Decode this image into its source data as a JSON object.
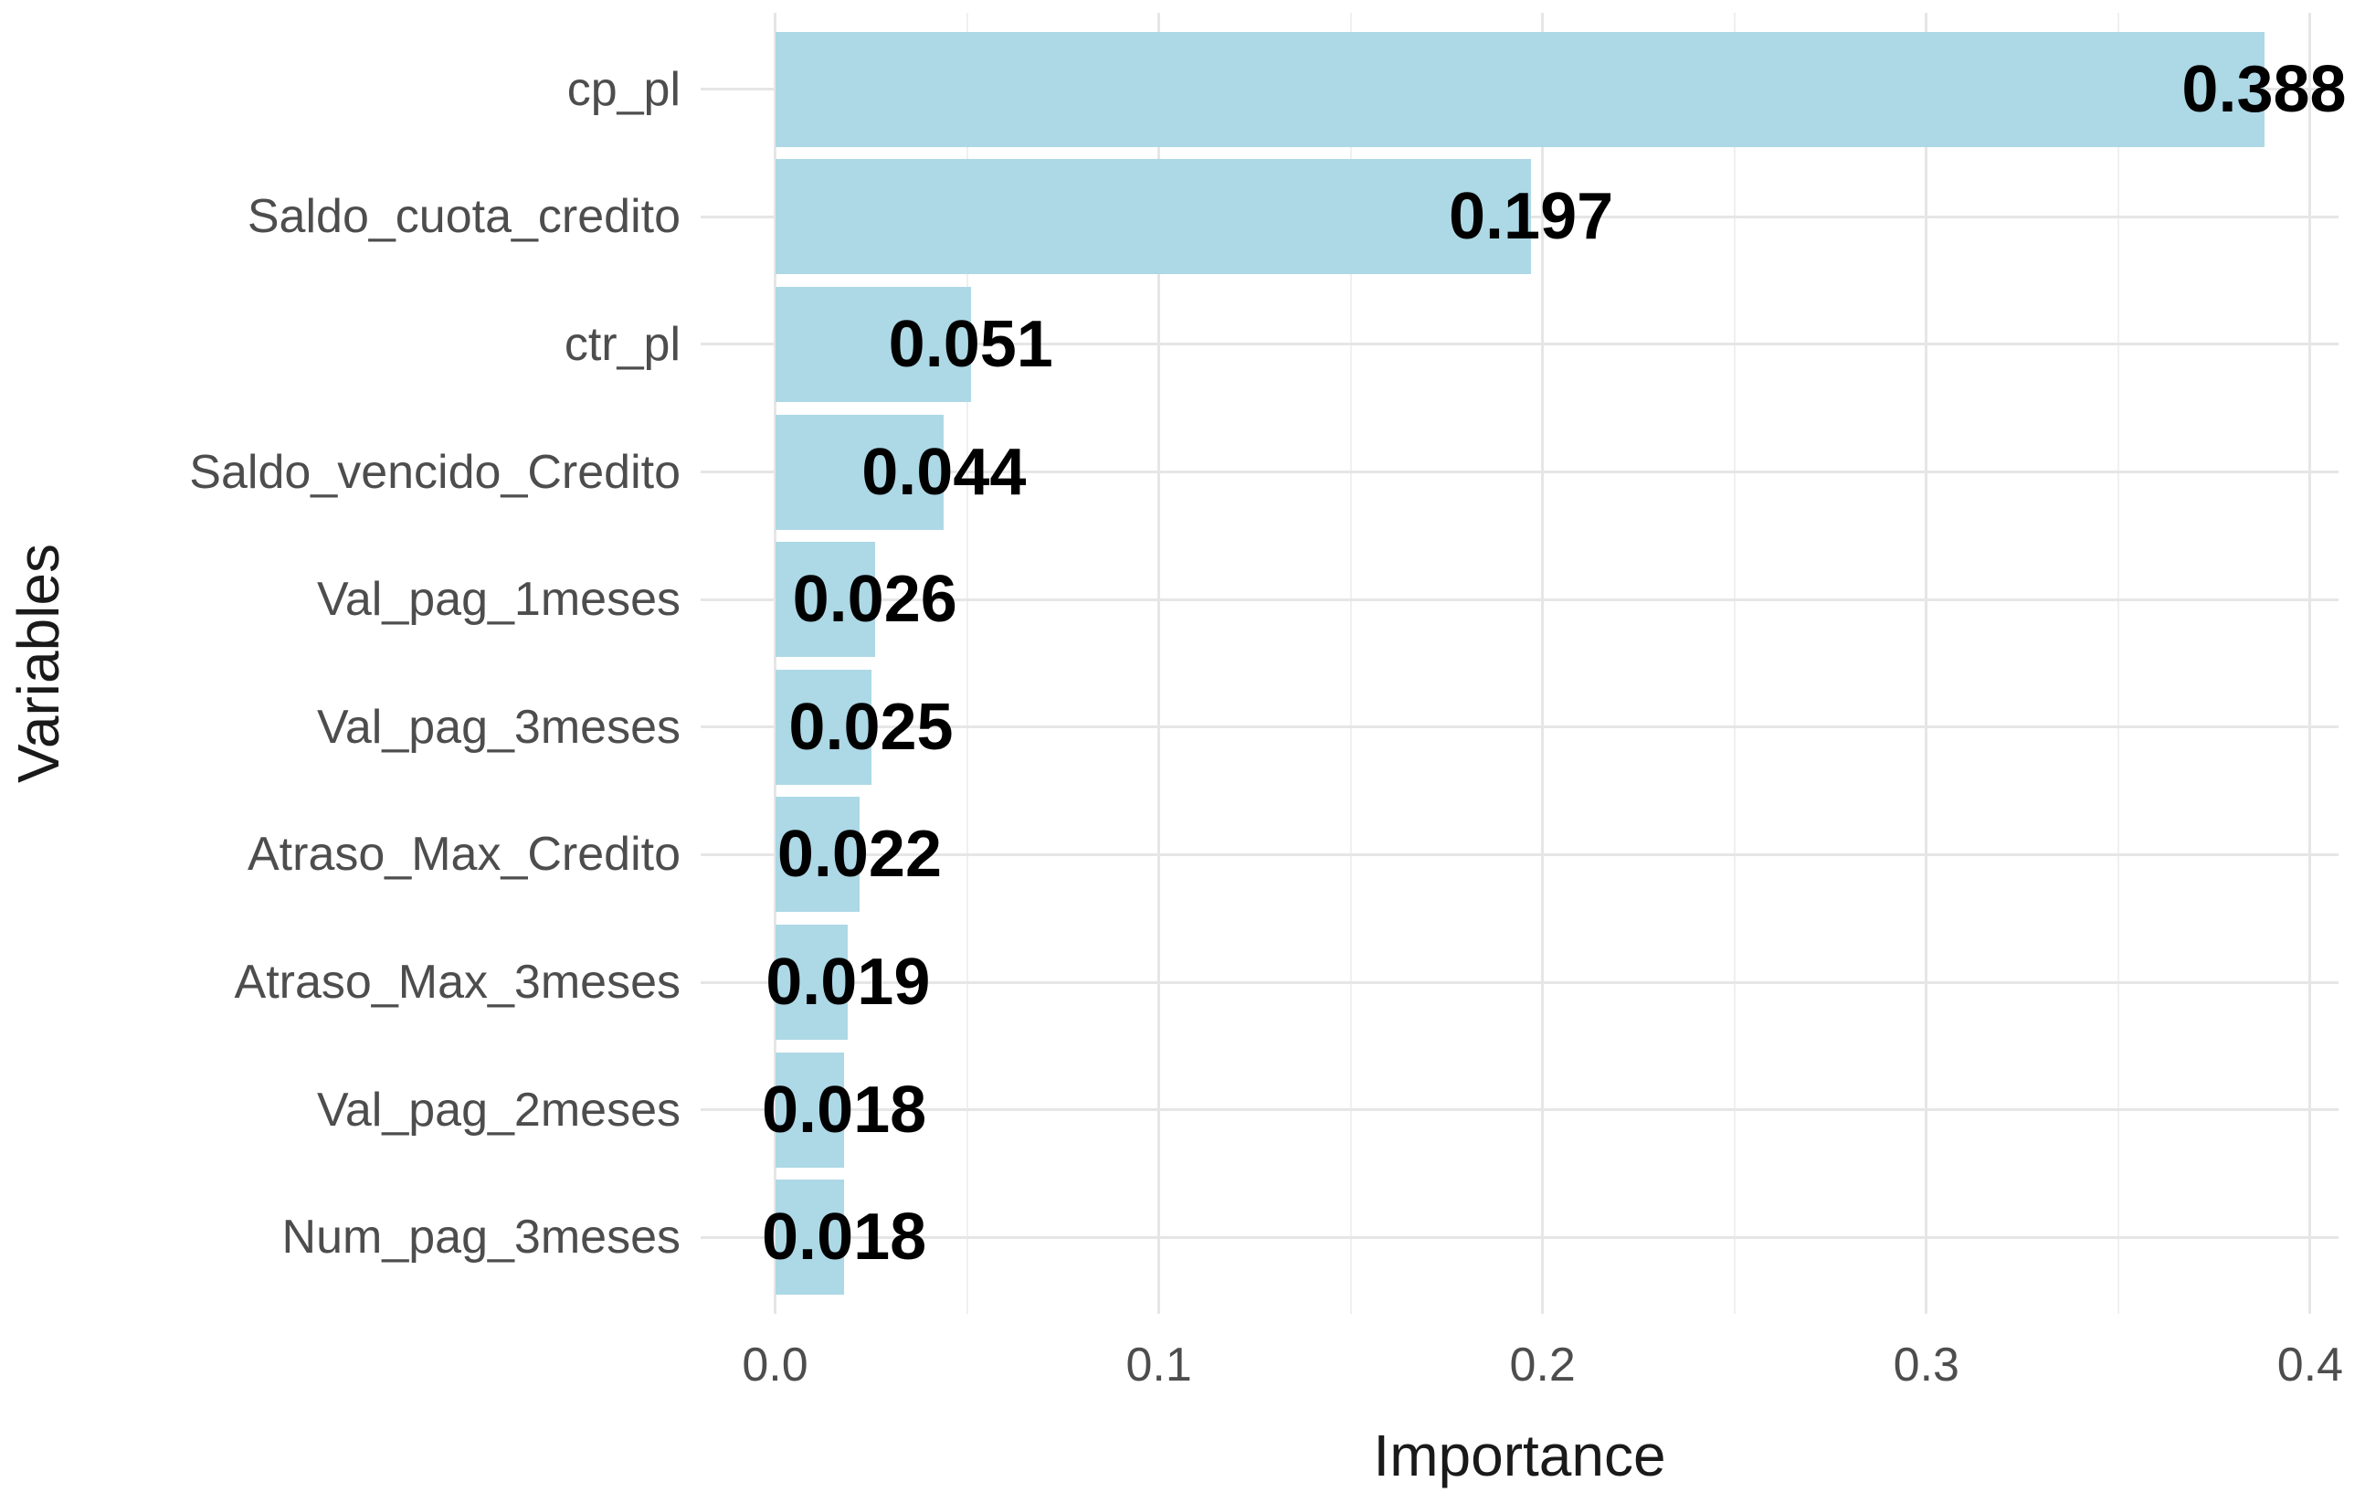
{
  "chart_data": {
    "type": "bar",
    "orientation": "horizontal",
    "title": "",
    "xlabel": "Importance",
    "ylabel": "Variables",
    "categories": [
      "cp_pl",
      "Saldo_cuota_credito",
      "ctr_pl",
      "Saldo_vencido_Credito",
      "Val_pag_1meses",
      "Val_pag_3meses",
      "Atraso_Max_Credito",
      "Atraso_Max_3meses",
      "Val_pag_2meses",
      "Num_pag_3meses"
    ],
    "values": [
      0.388,
      0.197,
      0.051,
      0.044,
      0.026,
      0.025,
      0.022,
      0.019,
      0.018,
      0.018
    ],
    "value_labels": [
      "0.388",
      "0.197",
      "0.051",
      "0.044",
      "0.026",
      "0.025",
      "0.022",
      "0.019",
      "0.018",
      "0.018"
    ],
    "x_tick_labels": [
      "0.0",
      "0.1",
      "0.2",
      "0.3",
      "0.4"
    ],
    "x_tick_values": [
      0.0,
      0.1,
      0.2,
      0.3,
      0.4
    ],
    "x_minor_tick_values": [
      0.05,
      0.15,
      0.25,
      0.35
    ],
    "xlim": [
      -0.0194,
      0.4074
    ],
    "grid": true,
    "legend": false,
    "colors": {
      "bar_fill": "#ADD8E6",
      "major_grid": "#E6E6E6",
      "minor_grid": "#F0F0F0",
      "axis_text": "#4D4D4D",
      "axis_title": "#1A1A1A",
      "value_text": "#000000",
      "background": "#FFFFFF"
    }
  }
}
